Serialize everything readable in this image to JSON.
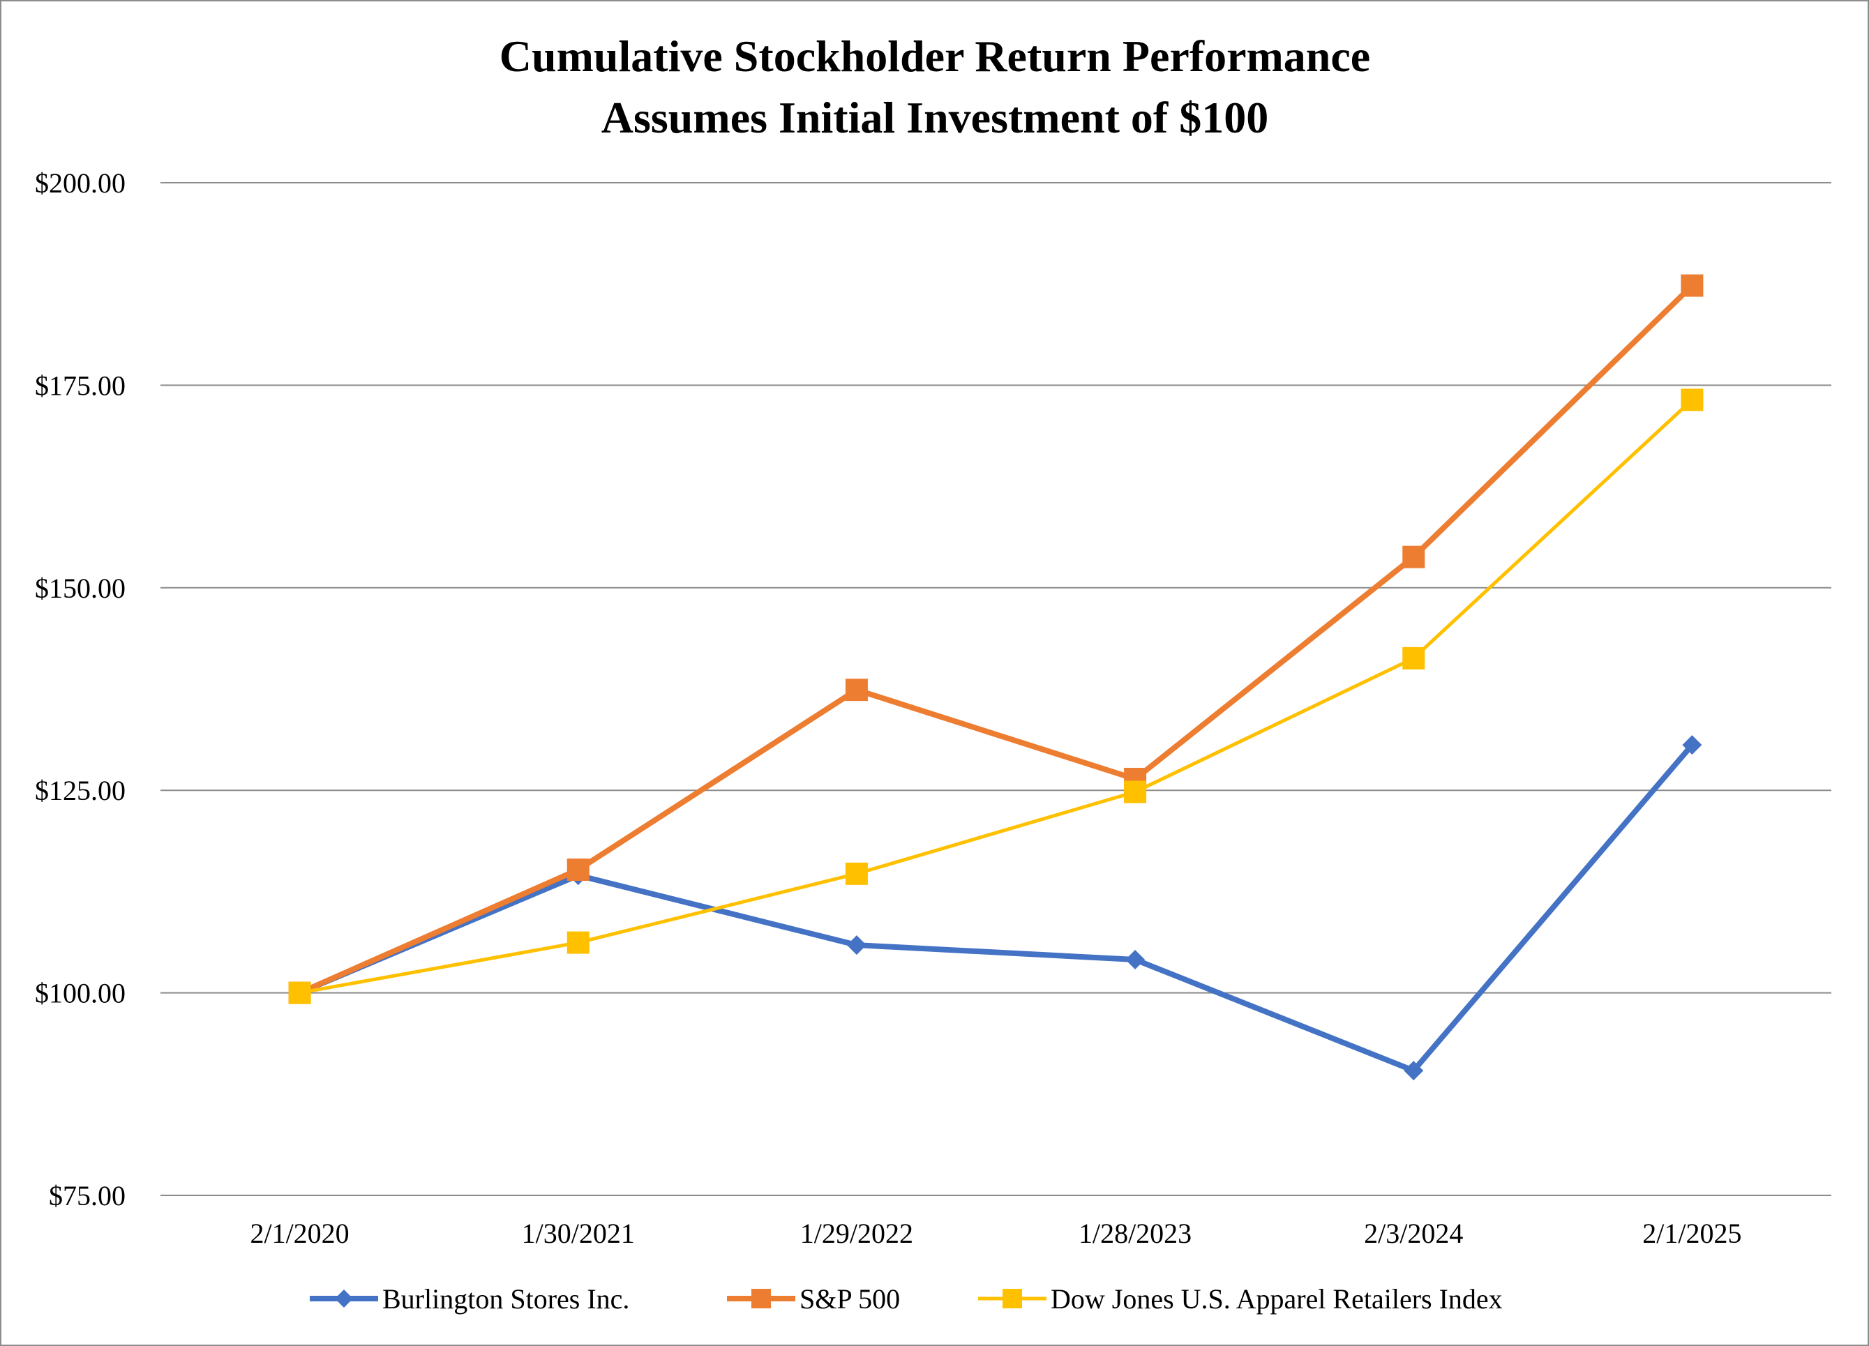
{
  "chart_data": {
    "type": "line",
    "title": "Cumulative Stockholder Return Performance",
    "subtitle": "Assumes Initial Investment of $100",
    "xlabel": "",
    "ylabel": "",
    "categories": [
      "2/1/2020",
      "1/30/2021",
      "1/29/2022",
      "1/28/2023",
      "2/3/2024",
      "2/1/2025"
    ],
    "ylim": [
      75,
      200
    ],
    "yticks": [
      75,
      100,
      125,
      150,
      175,
      200
    ],
    "ytick_labels": [
      "$75.00",
      "$100.00",
      "$125.00",
      "$150.00",
      "$175.00",
      "$200.00"
    ],
    "grid": true,
    "legend_position": "bottom",
    "series": [
      {
        "name": "Burlington Stores Inc.",
        "values": [
          100.0,
          114.5,
          105.9,
          104.1,
          90.4,
          130.6
        ],
        "color": "#4472C4",
        "marker": "diamond"
      },
      {
        "name": "S&P 500",
        "values": [
          100.0,
          115.2,
          137.4,
          126.4,
          153.8,
          187.3
        ],
        "color": "#ED7D31",
        "marker": "square"
      },
      {
        "name": "Dow Jones U.S. Apparel Retailers Index",
        "values": [
          100.0,
          106.2,
          114.7,
          124.8,
          141.3,
          173.2
        ],
        "color": "#FFC000",
        "marker": "square"
      }
    ]
  }
}
